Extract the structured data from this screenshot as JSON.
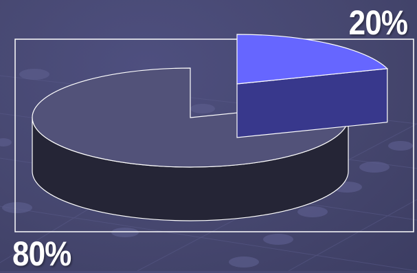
{
  "chart_data": {
    "type": "pie",
    "style": "3d-exploded",
    "title": "",
    "slices": [
      {
        "label": "20%",
        "value": 20,
        "color": "#6666ff",
        "exploded": true
      },
      {
        "label": "80%",
        "value": 80,
        "color": "#525279",
        "exploded": false
      }
    ],
    "legend": "none",
    "frame": true,
    "grid": false
  }
}
